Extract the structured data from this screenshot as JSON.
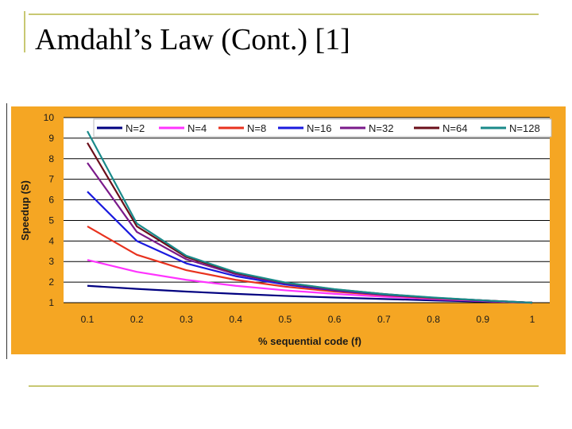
{
  "slide": {
    "title": "Amdahl’s Law (Cont.) [1]"
  },
  "colors": {
    "chart_background": "#f5a623",
    "plot_background": "#ffffff",
    "rule": "#c8c872"
  },
  "chart_data": {
    "type": "line",
    "title": "",
    "xlabel": "% sequential code (f)",
    "ylabel": "Speedup (S)",
    "x": [
      0.1,
      0.2,
      0.3,
      0.4,
      0.5,
      0.6,
      0.7,
      0.8,
      0.9,
      1
    ],
    "x_tick_labels": [
      "0.1",
      "0.2",
      "0.3",
      "0.4",
      "0.5",
      "0.6",
      "0.7",
      "0.8",
      "0.9",
      "1"
    ],
    "y_ticks": [
      "1",
      "2",
      "3",
      "4",
      "5",
      "6",
      "7",
      "8",
      "9",
      "10"
    ],
    "ylim": [
      1,
      10
    ],
    "grid": "horizontal",
    "legend_position": "top",
    "series": [
      {
        "name": "N=2",
        "color": "#000080",
        "values": [
          1.82,
          1.67,
          1.54,
          1.43,
          1.33,
          1.25,
          1.18,
          1.11,
          1.05,
          1.0
        ]
      },
      {
        "name": "N=4",
        "color": "#ff33ff",
        "values": [
          3.08,
          2.5,
          2.11,
          1.82,
          1.6,
          1.43,
          1.29,
          1.18,
          1.08,
          1.0
        ]
      },
      {
        "name": "N=8",
        "color": "#e8321e",
        "values": [
          4.71,
          3.33,
          2.58,
          2.11,
          1.78,
          1.54,
          1.36,
          1.21,
          1.1,
          1.0
        ]
      },
      {
        "name": "N=16",
        "color": "#1a1adf",
        "values": [
          6.4,
          4.0,
          2.91,
          2.29,
          1.88,
          1.6,
          1.39,
          1.23,
          1.1,
          1.0
        ]
      },
      {
        "name": "N=32",
        "color": "#7a1a8a",
        "values": [
          7.8,
          4.44,
          3.11,
          2.39,
          1.94,
          1.63,
          1.41,
          1.24,
          1.11,
          1.0
        ]
      },
      {
        "name": "N=64",
        "color": "#6b0f1a",
        "values": [
          8.77,
          4.71,
          3.22,
          2.45,
          1.97,
          1.65,
          1.42,
          1.24,
          1.11,
          1.0
        ]
      },
      {
        "name": "N=128",
        "color": "#1a8a8a",
        "values": [
          9.34,
          4.85,
          3.28,
          2.48,
          1.98,
          1.66,
          1.42,
          1.25,
          1.11,
          1.0
        ]
      }
    ]
  }
}
